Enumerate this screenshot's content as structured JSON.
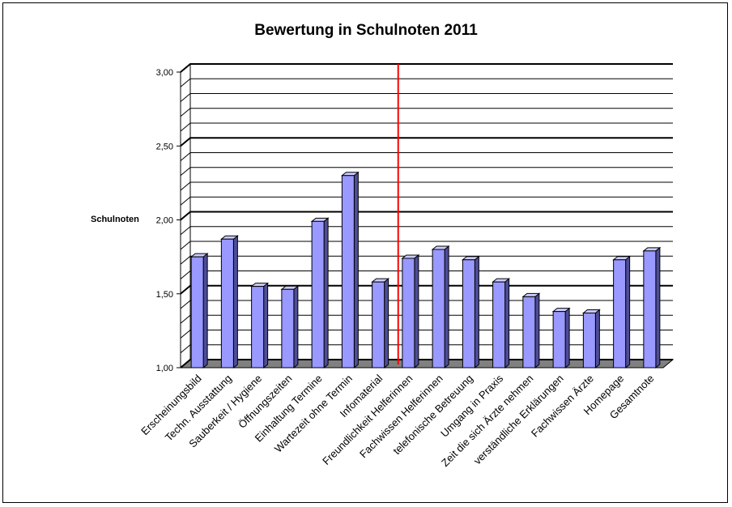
{
  "chart_data": {
    "type": "bar",
    "title": "Bewertung in Schulnoten 2011",
    "ylabel": "Schulnoten",
    "xlabel": "",
    "ylim": [
      1.0,
      3.0
    ],
    "yticks": [
      "1,00",
      "1,50",
      "2,00",
      "2,50",
      "3,00"
    ],
    "grid": true,
    "categories": [
      "Erscheinungsbild",
      "Techn. Ausstattung",
      "Sauberkeit / Hygiene",
      "Öffnungszeiten",
      "Einhaltung Termine",
      "Wartezeit ohne Termin",
      "Infomaterial",
      "Freundlichkeit Helferinnen",
      "Fachwissen Helferinnen",
      "telefonische Betreuung",
      "Umgang in Praxis",
      "Zeit die sich Ärzte nehmen",
      "verständliche Erklärungen",
      "Fachwissen Ärzte",
      "Homepage",
      "Gesamtnote"
    ],
    "values": [
      1.75,
      1.87,
      1.55,
      1.53,
      1.99,
      2.3,
      1.58,
      1.74,
      1.8,
      1.73,
      1.58,
      1.48,
      1.38,
      1.37,
      1.73,
      1.79
    ],
    "bar_color": "#9999ff",
    "divider_color": "#ff0000"
  }
}
